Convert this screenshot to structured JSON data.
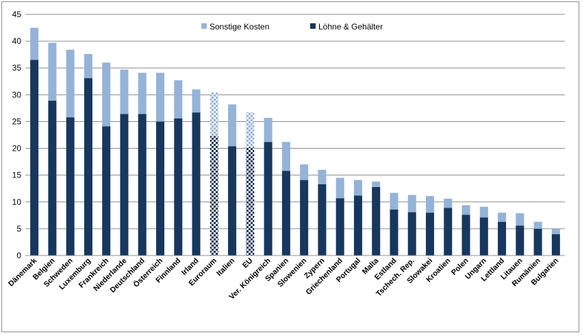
{
  "chart_data": {
    "type": "bar",
    "stacked": true,
    "categories": [
      "Dänemark",
      "Belgien",
      "Schweden",
      "Luxemburg",
      "Frankreich",
      "Niederlande",
      "Deutschland",
      "Österreich",
      "Finnland",
      "Irland",
      "Euroraum",
      "Italien",
      "EU",
      "Ver. Königreich",
      "Spanien",
      "Slowenien",
      "Zypern",
      "Griechenland",
      "Portugal",
      "Malta",
      "Estland",
      "Tschech. Rep.",
      "Slowakei",
      "Kroatien",
      "Polen",
      "Ungarn",
      "Lettland",
      "Litauen",
      "Rumänien",
      "Bulgarien"
    ],
    "series": [
      {
        "name": "Löhne & Gehälter",
        "color": "#17375e",
        "values": [
          36.5,
          28.9,
          25.8,
          33.1,
          24.1,
          26.4,
          26.4,
          25.0,
          25.6,
          26.7,
          22.3,
          20.4,
          20.2,
          21.2,
          15.8,
          14.1,
          13.3,
          10.7,
          11.2,
          12.8,
          8.6,
          8.1,
          8.0,
          8.9,
          7.6,
          7.1,
          6.3,
          5.6,
          5.0,
          4.0
        ]
      },
      {
        "name": "Sonstige Kosten",
        "color": "#95b3d7",
        "values": [
          6.0,
          10.8,
          12.6,
          4.5,
          11.9,
          8.3,
          7.7,
          9.1,
          7.1,
          4.3,
          8.1,
          7.8,
          6.5,
          4.5,
          5.4,
          2.9,
          2.7,
          3.8,
          2.9,
          1.0,
          3.1,
          3.2,
          3.1,
          1.7,
          1.8,
          2.0,
          1.7,
          2.3,
          1.3,
          1.0
        ]
      }
    ],
    "highlighted_categories": [
      "Euroraum",
      "EU"
    ],
    "ylim": [
      0,
      45
    ],
    "yticks": [
      0,
      5,
      10,
      15,
      20,
      25,
      30,
      35,
      40,
      45
    ],
    "ylabel": "",
    "xlabel": "",
    "title": "",
    "grid": true,
    "legend_position": "top-center"
  }
}
